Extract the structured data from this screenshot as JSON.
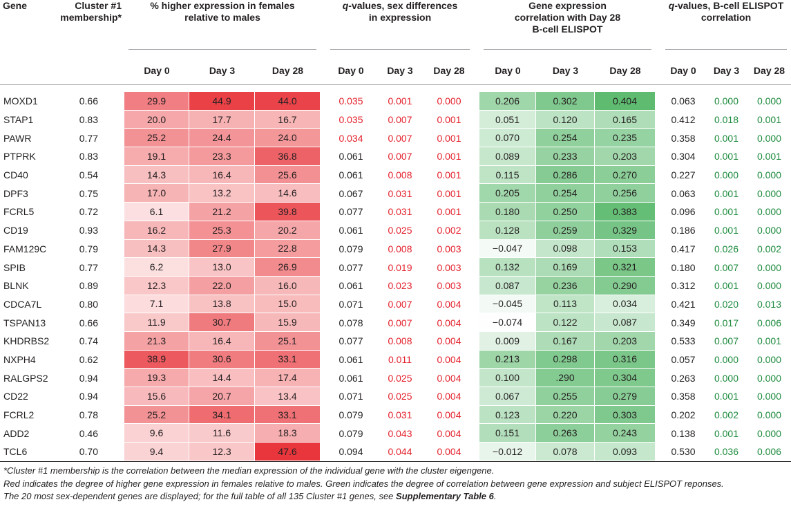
{
  "headers": {
    "gene": "Gene",
    "cluster": [
      "Cluster #1",
      "membership*"
    ],
    "pct": [
      "% higher expression in females",
      "relative to males"
    ],
    "qsex": [
      "q-values, sex differences",
      "in expression"
    ],
    "corr": [
      "Gene expression",
      "correlation with Day 28",
      "B-cell ELISPOT"
    ],
    "qelispot": [
      "q-values, B-cell ELISPOT",
      "correlation"
    ],
    "q_letter": "q",
    "qsex_rest_1": "-values, sex differences",
    "qelispot_rest_1": "-values, B-cell ELISPOT",
    "days": [
      "Day 0",
      "Day 3",
      "Day 28"
    ]
  },
  "colors": {
    "red_text": "#e4202b",
    "green_text": "#1c8a3d",
    "heat_red_max": "#e8343a",
    "heat_green_max": "#5cba6e"
  },
  "rows": [
    {
      "gene": "MOXD1",
      "cluster": "0.66",
      "pct": [
        "29.9",
        "44.9",
        "44.0"
      ],
      "qsex": [
        "0.035",
        "0.001",
        "0.000"
      ],
      "corr": [
        "0.206",
        "0.302",
        "0.404"
      ],
      "qel": [
        "0.063",
        "0.000",
        "0.000"
      ]
    },
    {
      "gene": "STAP1",
      "cluster": "0.83",
      "pct": [
        "20.0",
        "17.7",
        "16.7"
      ],
      "qsex": [
        "0.035",
        "0.007",
        "0.001"
      ],
      "corr": [
        "0.051",
        "0.120",
        "0.165"
      ],
      "qel": [
        "0.412",
        "0.018",
        "0.001"
      ]
    },
    {
      "gene": "PAWR",
      "cluster": "0.77",
      "pct": [
        "25.2",
        "24.4",
        "24.0"
      ],
      "qsex": [
        "0.034",
        "0.007",
        "0.001"
      ],
      "corr": [
        "0.070",
        "0.254",
        "0.235"
      ],
      "qel": [
        "0.358",
        "0.001",
        "0.000"
      ]
    },
    {
      "gene": "PTPRK",
      "cluster": "0.83",
      "pct": [
        "19.1",
        "23.3",
        "36.8"
      ],
      "qsex": [
        "0.061",
        "0.007",
        "0.001"
      ],
      "corr": [
        "0.089",
        "0.233",
        "0.203"
      ],
      "qel": [
        "0.304",
        "0.001",
        "0.001"
      ]
    },
    {
      "gene": "CD40",
      "cluster": "0.54",
      "pct": [
        "14.3",
        "16.4",
        "25.6"
      ],
      "qsex": [
        "0.061",
        "0.008",
        "0.001"
      ],
      "corr": [
        "0.115",
        "0.286",
        "0.270"
      ],
      "qel": [
        "0.227",
        "0.000",
        "0.000"
      ]
    },
    {
      "gene": "DPF3",
      "cluster": "0.75",
      "pct": [
        "17.0",
        "13.2",
        "14.6"
      ],
      "qsex": [
        "0.067",
        "0.031",
        "0.001"
      ],
      "corr": [
        "0.205",
        "0.254",
        "0.256"
      ],
      "qel": [
        "0.063",
        "0.001",
        "0.000"
      ]
    },
    {
      "gene": "FCRL5",
      "cluster": "0.72",
      "pct": [
        "6.1",
        "21.2",
        "39.8"
      ],
      "qsex": [
        "0.077",
        "0.031",
        "0.001"
      ],
      "corr": [
        "0.180",
        "0.250",
        "0.383"
      ],
      "qel": [
        "0.096",
        "0.001",
        "0.000"
      ]
    },
    {
      "gene": "CD19",
      "cluster": "0.93",
      "pct": [
        "16.2",
        "25.3",
        "20.2"
      ],
      "qsex": [
        "0.061",
        "0.025",
        "0.002"
      ],
      "corr": [
        "0.128",
        "0.259",
        "0.329"
      ],
      "qel": [
        "0.186",
        "0.001",
        "0.000"
      ]
    },
    {
      "gene": "FAM129C",
      "cluster": "0.79",
      "pct": [
        "14.3",
        "27.9",
        "22.8"
      ],
      "qsex": [
        "0.079",
        "0.008",
        "0.003"
      ],
      "corr": [
        "−0.047",
        "0.098",
        "0.153"
      ],
      "qel": [
        "0.417",
        "0.026",
        "0.002"
      ]
    },
    {
      "gene": "SPIB",
      "cluster": "0.77",
      "pct": [
        "6.2",
        "13.0",
        "26.9"
      ],
      "qsex": [
        "0.077",
        "0.019",
        "0.003"
      ],
      "corr": [
        "0.132",
        "0.169",
        "0.321"
      ],
      "qel": [
        "0.180",
        "0.007",
        "0.000"
      ]
    },
    {
      "gene": "BLNK",
      "cluster": "0.89",
      "pct": [
        "12.3",
        "22.0",
        "16.0"
      ],
      "qsex": [
        "0.061",
        "0.023",
        "0.003"
      ],
      "corr": [
        "0.087",
        "0.236",
        "0.290"
      ],
      "qel": [
        "0.312",
        "0.001",
        "0.000"
      ]
    },
    {
      "gene": "CDCA7L",
      "cluster": "0.80",
      "pct": [
        "7.1",
        "13.8",
        "15.0"
      ],
      "qsex": [
        "0.071",
        "0.007",
        "0.004"
      ],
      "corr": [
        "−0.045",
        "0.113",
        "0.034"
      ],
      "qel": [
        "0.421",
        "0.020",
        "0.013"
      ]
    },
    {
      "gene": "TSPAN13",
      "cluster": "0.66",
      "pct": [
        "11.9",
        "30.7",
        "15.9"
      ],
      "qsex": [
        "0.078",
        "0.007",
        "0.004"
      ],
      "corr": [
        "−0.074",
        "0.122",
        "0.087"
      ],
      "qel": [
        "0.349",
        "0.017",
        "0.006"
      ]
    },
    {
      "gene": "KHDRBS2",
      "cluster": "0.74",
      "pct": [
        "21.3",
        "16.4",
        "25.1"
      ],
      "qsex": [
        "0.077",
        "0.008",
        "0.004"
      ],
      "corr": [
        "0.009",
        "0.167",
        "0.203"
      ],
      "qel": [
        "0.533",
        "0.007",
        "0.001"
      ]
    },
    {
      "gene": "NXPH4",
      "cluster": "0.62",
      "pct": [
        "38.9",
        "30.6",
        "33.1"
      ],
      "qsex": [
        "0.061",
        "0.011",
        "0.004"
      ],
      "corr": [
        "0.213",
        "0.298",
        "0.316"
      ],
      "qel": [
        "0.057",
        "0.000",
        "0.000"
      ]
    },
    {
      "gene": "RALGPS2",
      "cluster": "0.94",
      "pct": [
        "19.3",
        "14.4",
        "17.4"
      ],
      "qsex": [
        "0.061",
        "0.025",
        "0.004"
      ],
      "corr": [
        "0.100",
        ".290",
        "0.304"
      ],
      "qel": [
        "0.263",
        "0.000",
        "0.000"
      ]
    },
    {
      "gene": "CD22",
      "cluster": "0.94",
      "pct": [
        "15.6",
        "20.7",
        "13.4"
      ],
      "qsex": [
        "0.071",
        "0.025",
        "0.004"
      ],
      "corr": [
        "0.067",
        "0.255",
        "0.279"
      ],
      "qel": [
        "0.358",
        "0.001",
        "0.000"
      ]
    },
    {
      "gene": "FCRL2",
      "cluster": "0.78",
      "pct": [
        "25.2",
        "34.1",
        "33.1"
      ],
      "qsex": [
        "0.079",
        "0.031",
        "0.004"
      ],
      "corr": [
        "0.123",
        "0.220",
        "0.303"
      ],
      "qel": [
        "0.202",
        "0.002",
        "0.000"
      ]
    },
    {
      "gene": "ADD2",
      "cluster": "0.46",
      "pct": [
        "9.6",
        "11.6",
        "18.3"
      ],
      "qsex": [
        "0.079",
        "0.043",
        "0.004"
      ],
      "corr": [
        "0.151",
        "0.263",
        "0.243"
      ],
      "qel": [
        "0.138",
        "0.001",
        "0.000"
      ]
    },
    {
      "gene": "TCL6",
      "cluster": "0.70",
      "pct": [
        "9.4",
        "12.3",
        "47.6"
      ],
      "qsex": [
        "0.094",
        "0.044",
        "0.004"
      ],
      "corr": [
        "−0.012",
        "0.078",
        "0.093"
      ],
      "qel": [
        "0.530",
        "0.036",
        "0.006"
      ]
    }
  ],
  "notes": {
    "line1": "*Cluster #1 membership is the correlation between the median expression of the individual gene with the cluster eigengene.",
    "line2": "Red indicates the degree of higher gene expression in females relative to males. Green indicates the degree of correlation between gene expression and subject ELISPOT reponses.",
    "line3_pre": "The 20 most sex-dependent genes are displayed; for the full table of all 135 Cluster #1 genes, see ",
    "line3_bold": "Supplementary Table 6",
    "line3_post": "."
  }
}
